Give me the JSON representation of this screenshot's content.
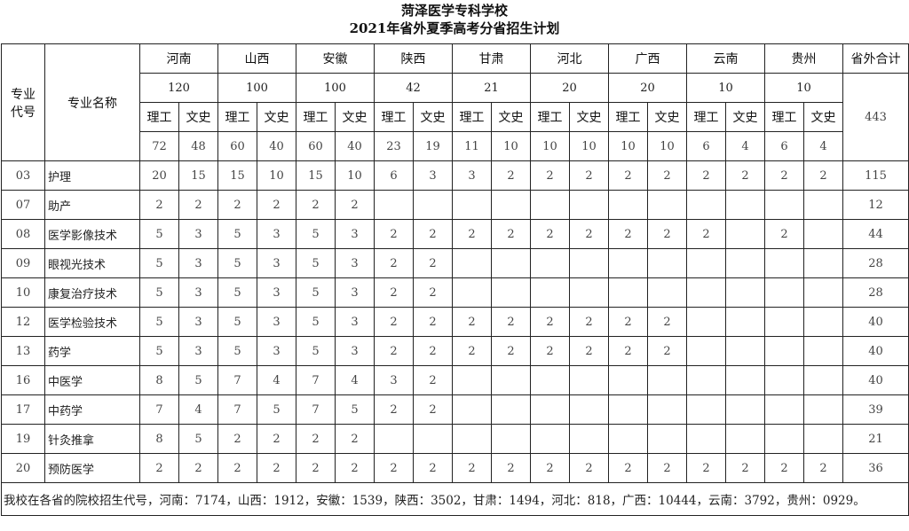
{
  "title": "菏泽医学专科学校",
  "subtitle": "2021年省外夏季高考分省招生计划",
  "headers": {
    "code": "专业代号",
    "name": "专业名称",
    "total": "省外合计",
    "science": "理工",
    "arts": "文史"
  },
  "provinces": [
    {
      "name": "河南",
      "total": "120",
      "science": "72",
      "arts": "48"
    },
    {
      "name": "山西",
      "total": "100",
      "science": "60",
      "arts": "40"
    },
    {
      "name": "安徽",
      "total": "100",
      "science": "60",
      "arts": "40"
    },
    {
      "name": "陕西",
      "total": "42",
      "science": "23",
      "arts": "19"
    },
    {
      "name": "甘肃",
      "total": "21",
      "science": "11",
      "arts": "10"
    },
    {
      "name": "河北",
      "total": "20",
      "science": "10",
      "arts": "10"
    },
    {
      "name": "广西",
      "total": "20",
      "science": "10",
      "arts": "10"
    },
    {
      "name": "云南",
      "total": "10",
      "science": "6",
      "arts": "4"
    },
    {
      "name": "贵州",
      "total": "10",
      "science": "6",
      "arts": "4"
    }
  ],
  "grand_total": "443",
  "rows": [
    {
      "code": "03",
      "name": "护理",
      "values": [
        "20",
        "15",
        "15",
        "10",
        "15",
        "10",
        "6",
        "3",
        "3",
        "2",
        "2",
        "2",
        "2",
        "2",
        "2",
        "2",
        "2",
        "2"
      ],
      "total": "115"
    },
    {
      "code": "07",
      "name": "助产",
      "values": [
        "2",
        "2",
        "2",
        "2",
        "2",
        "2",
        "",
        "",
        "",
        "",
        "",
        "",
        "",
        "",
        "",
        "",
        "",
        ""
      ],
      "total": "12"
    },
    {
      "code": "08",
      "name": "医学影像技术",
      "values": [
        "5",
        "3",
        "5",
        "3",
        "5",
        "3",
        "2",
        "2",
        "2",
        "2",
        "2",
        "2",
        "2",
        "2",
        "2",
        "",
        "2",
        ""
      ],
      "total": "44"
    },
    {
      "code": "09",
      "name": "眼视光技术",
      "values": [
        "5",
        "3",
        "5",
        "3",
        "5",
        "3",
        "2",
        "2",
        "",
        "",
        "",
        "",
        "",
        "",
        "",
        "",
        "",
        ""
      ],
      "total": "28"
    },
    {
      "code": "10",
      "name": "康复治疗技术",
      "values": [
        "5",
        "3",
        "5",
        "3",
        "5",
        "3",
        "2",
        "2",
        "",
        "",
        "",
        "",
        "",
        "",
        "",
        "",
        "",
        ""
      ],
      "total": "28"
    },
    {
      "code": "12",
      "name": "医学检验技术",
      "values": [
        "5",
        "3",
        "5",
        "3",
        "5",
        "3",
        "2",
        "2",
        "2",
        "2",
        "2",
        "2",
        "2",
        "2",
        "",
        "",
        "",
        ""
      ],
      "total": "40"
    },
    {
      "code": "13",
      "name": "药学",
      "values": [
        "5",
        "3",
        "5",
        "3",
        "5",
        "3",
        "2",
        "2",
        "2",
        "2",
        "2",
        "2",
        "2",
        "2",
        "",
        "",
        "",
        ""
      ],
      "total": "40"
    },
    {
      "code": "16",
      "name": "中医学",
      "values": [
        "8",
        "5",
        "7",
        "4",
        "7",
        "4",
        "3",
        "2",
        "",
        "",
        "",
        "",
        "",
        "",
        "",
        "",
        "",
        ""
      ],
      "total": "40"
    },
    {
      "code": "17",
      "name": "中药学",
      "values": [
        "7",
        "4",
        "7",
        "5",
        "7",
        "5",
        "2",
        "2",
        "",
        "",
        "",
        "",
        "",
        "",
        "",
        "",
        "",
        ""
      ],
      "total": "39"
    },
    {
      "code": "19",
      "name": "针灸推拿",
      "values": [
        "8",
        "5",
        "2",
        "2",
        "2",
        "2",
        "",
        "",
        "",
        "",
        "",
        "",
        "",
        "",
        "",
        "",
        "",
        ""
      ],
      "total": "21"
    },
    {
      "code": "20",
      "name": "预防医学",
      "values": [
        "2",
        "2",
        "2",
        "2",
        "2",
        "2",
        "2",
        "2",
        "2",
        "2",
        "2",
        "2",
        "2",
        "2",
        "2",
        "2",
        "2",
        "2"
      ],
      "total": "36"
    }
  ],
  "footnote": "我校在各省的院校招生代号，河南：7174，山西：1912，安徽：1539，陕西：3502，甘肃：1494，河北：818，广西：10444，云南：3792，贵州：0929。"
}
